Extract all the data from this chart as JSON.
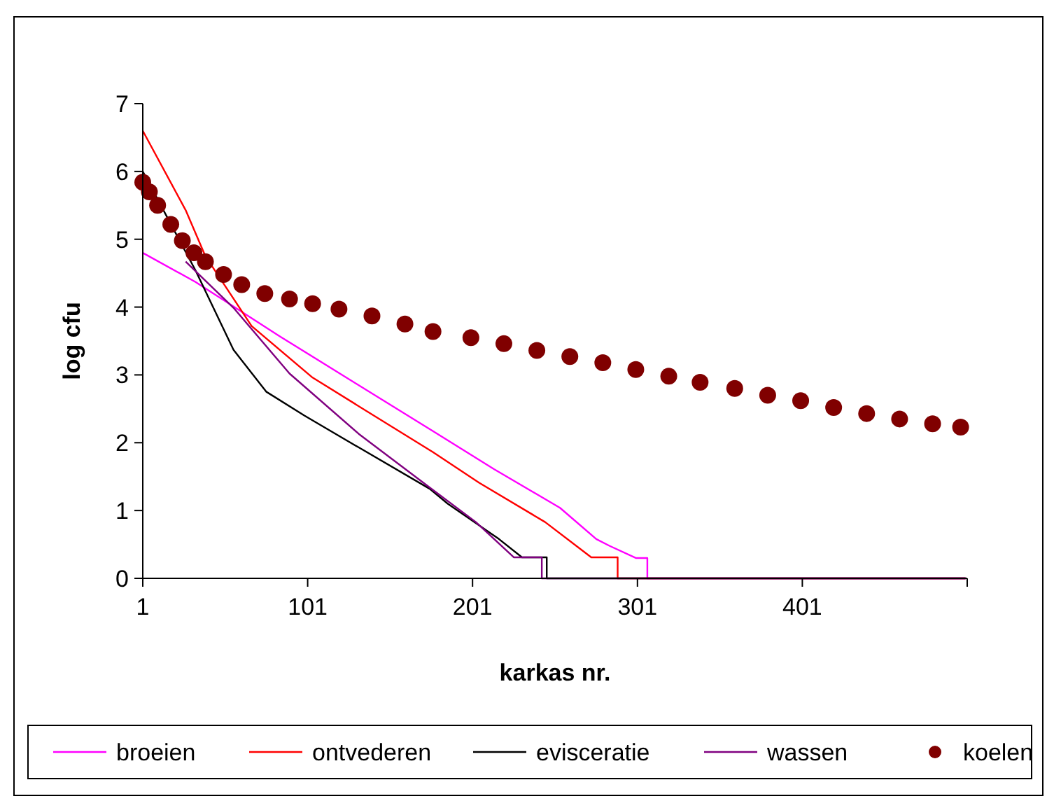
{
  "chart_data": {
    "type": "line",
    "xlabel": "karkas nr.",
    "ylabel": "log cfu",
    "xlim": [
      1,
      501
    ],
    "xticks": [
      1,
      101,
      201,
      301,
      401,
      {
        "value": 501,
        "label": null
      }
    ],
    "ylim": [
      0,
      7
    ],
    "yticks": [
      0,
      1,
      2,
      3,
      4,
      5,
      6,
      7
    ],
    "grid": false,
    "legend": "bottom",
    "line_style": "solid",
    "series": [
      {
        "name": "broeien",
        "color": "#ff00ff",
        "x": [
          1,
          33,
          84,
          177,
          214,
          254,
          276,
          284,
          300,
          307,
          307,
          500
        ],
        "values": [
          4.8,
          4.37,
          3.57,
          2.17,
          1.61,
          1.04,
          0.58,
          0.48,
          0.3,
          0.3,
          0,
          0
        ]
      },
      {
        "name": "ontvederen",
        "color": "#ff0000",
        "x": [
          1,
          27,
          39,
          67,
          104,
          177,
          205,
          245,
          273,
          289,
          289,
          500
        ],
        "values": [
          6.6,
          5.43,
          4.75,
          3.72,
          2.96,
          1.86,
          1.41,
          0.83,
          0.31,
          0.31,
          0,
          0
        ]
      },
      {
        "name": "evisceratie",
        "color": "#000000",
        "x": [
          1,
          33,
          56,
          76,
          99,
          132,
          175,
          186,
          217,
          231,
          246,
          246,
          500
        ],
        "values": [
          6.0,
          4.54,
          3.37,
          2.75,
          2.4,
          1.93,
          1.32,
          1.1,
          0.58,
          0.31,
          0.31,
          0,
          0
        ]
      },
      {
        "name": "wassen",
        "color": "#800080",
        "x": [
          27,
          56,
          90,
          132,
          175,
          203,
          226,
          243,
          243,
          500
        ],
        "values": [
          4.67,
          3.99,
          3.02,
          2.13,
          1.34,
          0.83,
          0.31,
          0.31,
          0,
          0
        ]
      },
      {
        "name": "koelen",
        "type": "scatter",
        "marker": "circle",
        "color": "#800000",
        "x": [
          1,
          5,
          10,
          18,
          25,
          32,
          39,
          50,
          61,
          75,
          90,
          104,
          120,
          140,
          160,
          177,
          200,
          220,
          240,
          260,
          280,
          300,
          320,
          339,
          360,
          380,
          400,
          420,
          440,
          460,
          480,
          497
        ],
        "values": [
          5.84,
          5.7,
          5.5,
          5.22,
          4.98,
          4.8,
          4.67,
          4.48,
          4.33,
          4.2,
          4.12,
          4.05,
          3.97,
          3.87,
          3.75,
          3.64,
          3.55,
          3.46,
          3.36,
          3.27,
          3.18,
          3.08,
          2.98,
          2.89,
          2.8,
          2.7,
          2.62,
          2.52,
          2.43,
          2.35,
          2.28,
          2.23
        ]
      }
    ]
  }
}
